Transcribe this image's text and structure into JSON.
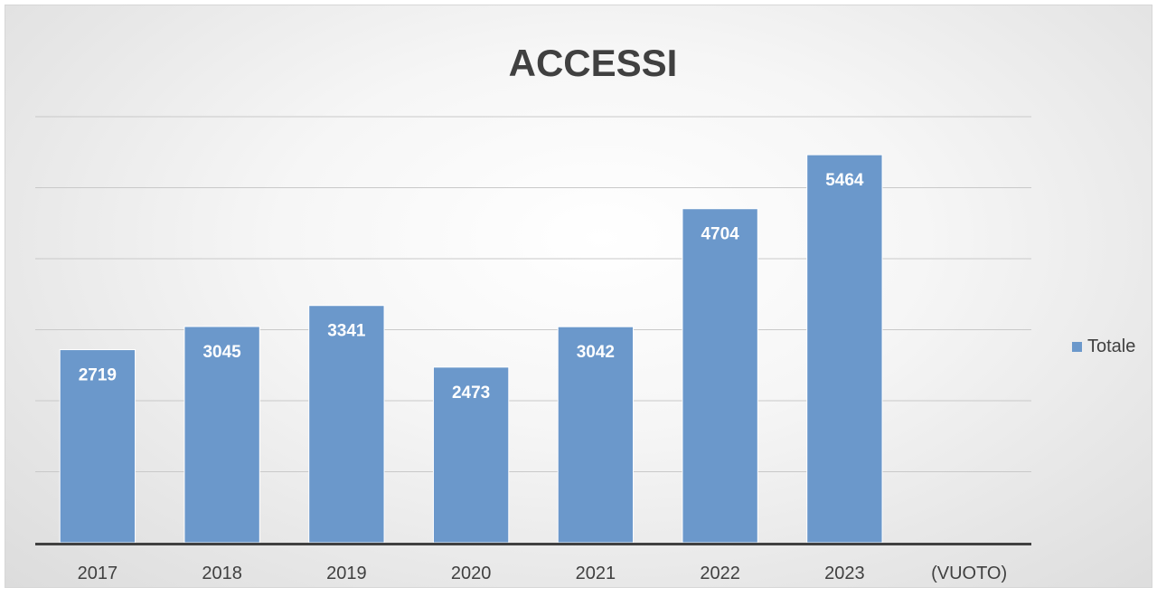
{
  "chart_data": {
    "type": "bar",
    "title": "ACCESSI",
    "categories": [
      "2017",
      "2018",
      "2019",
      "2020",
      "2021",
      "2022",
      "2023",
      "(VUOTO)"
    ],
    "series": [
      {
        "name": "Totale",
        "values": [
          2719,
          3045,
          3341,
          2473,
          3042,
          4704,
          5464,
          null
        ],
        "color": "#6b98cb"
      }
    ],
    "ylim": [
      0,
      6000
    ],
    "y_gridline_step": 1000,
    "grid": true,
    "data_labels": true,
    "legend_position": "right"
  }
}
